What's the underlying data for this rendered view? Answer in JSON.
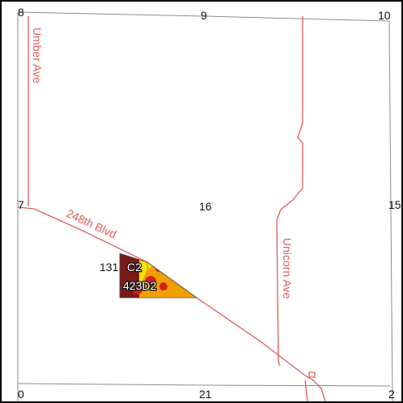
{
  "map": {
    "colors": {
      "road": "#e05a5a",
      "section_line": "#8c8c8c",
      "soil_dark": "#7a1a1a",
      "soil_yellow": "#f5e400",
      "soil_orange": "#f0a000",
      "soil_red": "#d02020",
      "frame": "#000000"
    },
    "section_numbers": {
      "top_left": "8",
      "top_center": "9",
      "top_right": "10",
      "mid_left": "7",
      "center": "16",
      "mid_right": "15",
      "bottom_left": "0",
      "bottom_center": "21",
      "bottom_right": "2"
    },
    "roads": {
      "umber": "Umber Ave",
      "blvd_248": "248th Blvd",
      "unicorn": "Unicorn Ave"
    },
    "soil_units": {
      "label_131": "131",
      "label_c2": "C2",
      "label_423d2": "423D2"
    }
  }
}
